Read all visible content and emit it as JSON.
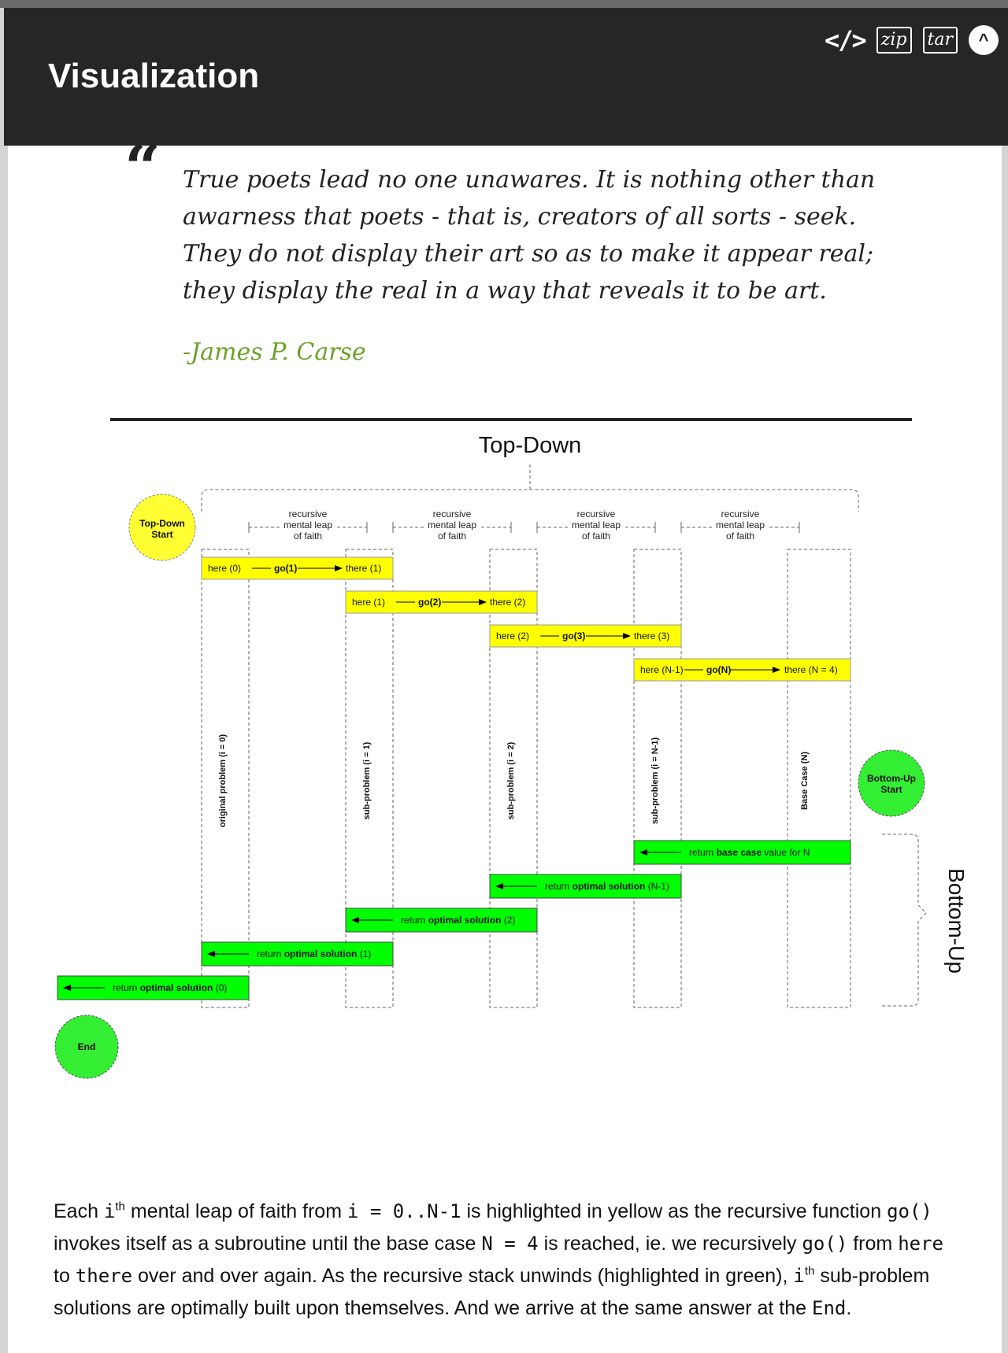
{
  "header": {
    "title": "Visualization",
    "icons": [
      "code-icon",
      "zip-icon",
      "tar-icon",
      "chevron-up-icon"
    ],
    "icon_labels": {
      "code": "</>",
      "zip": "zip",
      "tar": "tar",
      "up": "^"
    }
  },
  "quote": {
    "mark": "“",
    "text": "True poets lead no one unawares. It is nothing other than awarness that poets - that is, creators of all sorts - seek. They do not display their art so as to make it appear real; they display the real in a way that reveals it to be art.",
    "author": "-James P. Carse"
  },
  "diagram": {
    "top_title": "Top-Down",
    "side_title": "Bottom-Up",
    "start_label": "Top-Down\nStart",
    "bottom_start_label": "Bottom-Up\nStart",
    "end_label": "End",
    "leap_label": [
      "recursive",
      "mental leap",
      "of faith"
    ],
    "columns": [
      "original problem (i = 0)",
      "sub-problem (i = 1)",
      "sub-problem (i = 2)",
      "sub-problem (i = N-1)",
      "Base Case (N)"
    ],
    "calls": [
      {
        "here": "here (0)",
        "go": "go(1)",
        "there": "there (1)"
      },
      {
        "here": "here (1)",
        "go": "go(2)",
        "there": "there (2)"
      },
      {
        "here": "here (2)",
        "go": "go(3)",
        "there": "there (3)"
      },
      {
        "here": "here (N-1)",
        "go": "go(N)",
        "there": "there (N = 4)"
      }
    ],
    "returns": [
      {
        "pre": "return ",
        "bold": "base case",
        "post": " value for N"
      },
      {
        "pre": "return ",
        "bold": "optimal solution",
        "post": " (N-1)"
      },
      {
        "pre": "return ",
        "bold": "optimal solution",
        "post": " (2)"
      },
      {
        "pre": "return ",
        "bold": "optimal solution",
        "post": " (1)"
      },
      {
        "pre": "return ",
        "bold": "optimal solution",
        "post": " (0)"
      }
    ],
    "colors": {
      "yellow": "#ffff00",
      "green": "#00ff00",
      "start_yellow": "#ffff33",
      "end_green": "#33ee33"
    }
  },
  "paragraph": {
    "s1": "Each ",
    "i1": "i",
    "th1": "th",
    "s2": " mental leap of faith from ",
    "range": "i = 0..N-1",
    "s3": " is highlighted in yellow as the recursive function ",
    "go1": "go()",
    "s4": " invokes itself as a subroutine until the base case ",
    "basecase": "N = 4",
    "s5": " is reached, ie. we recursively ",
    "go2": "go()",
    "s6": " from ",
    "here": "here",
    "s7": " to ",
    "there": "there",
    "s8": " over and over again. As the recursive stack unwinds (highlighted in green), ",
    "i2": "i",
    "th2": "th",
    "s9": " sub-problem solutions are optimally built upon themselves. And we arrive at the same answer at the ",
    "end": "End",
    "s10": "."
  }
}
